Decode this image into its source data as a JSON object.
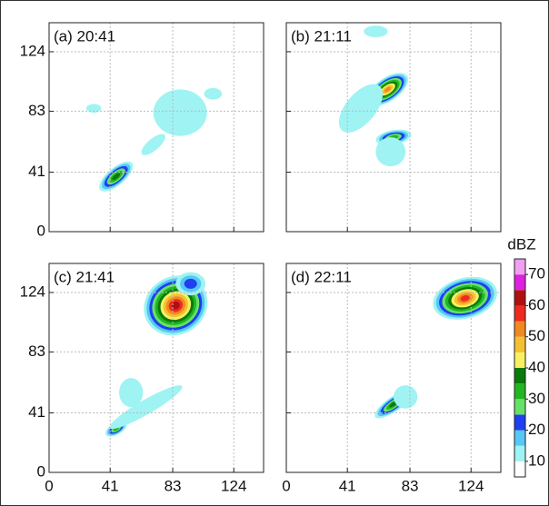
{
  "chart_data": {
    "type": "radar-panels",
    "panels": [
      {
        "title": "(a) 20:41"
      },
      {
        "title": "(b) 21:11"
      },
      {
        "title": "(c) 21:41"
      },
      {
        "title": "(d) 22:11"
      }
    ],
    "xlim": [
      0,
      144
    ],
    "ylim": [
      0,
      144
    ],
    "xticks": [
      0,
      41,
      83,
      124
    ],
    "yticks": [
      0,
      41,
      83,
      124
    ],
    "grid": true,
    "colorbar": {
      "label": "dBZ",
      "lim": [
        5,
        75
      ],
      "ticks": [
        10,
        20,
        30,
        40,
        50,
        60,
        70
      ],
      "colors": [
        "#ffffff",
        "#9ff3f3",
        "#55c8f5",
        "#1f3ff0",
        "#66e266",
        "#22b622",
        "#0a7a0a",
        "#f8f060",
        "#f5c030",
        "#f08a20",
        "#ee2a20",
        "#b01010",
        "#e020e0",
        "#f0a0f0"
      ]
    }
  }
}
